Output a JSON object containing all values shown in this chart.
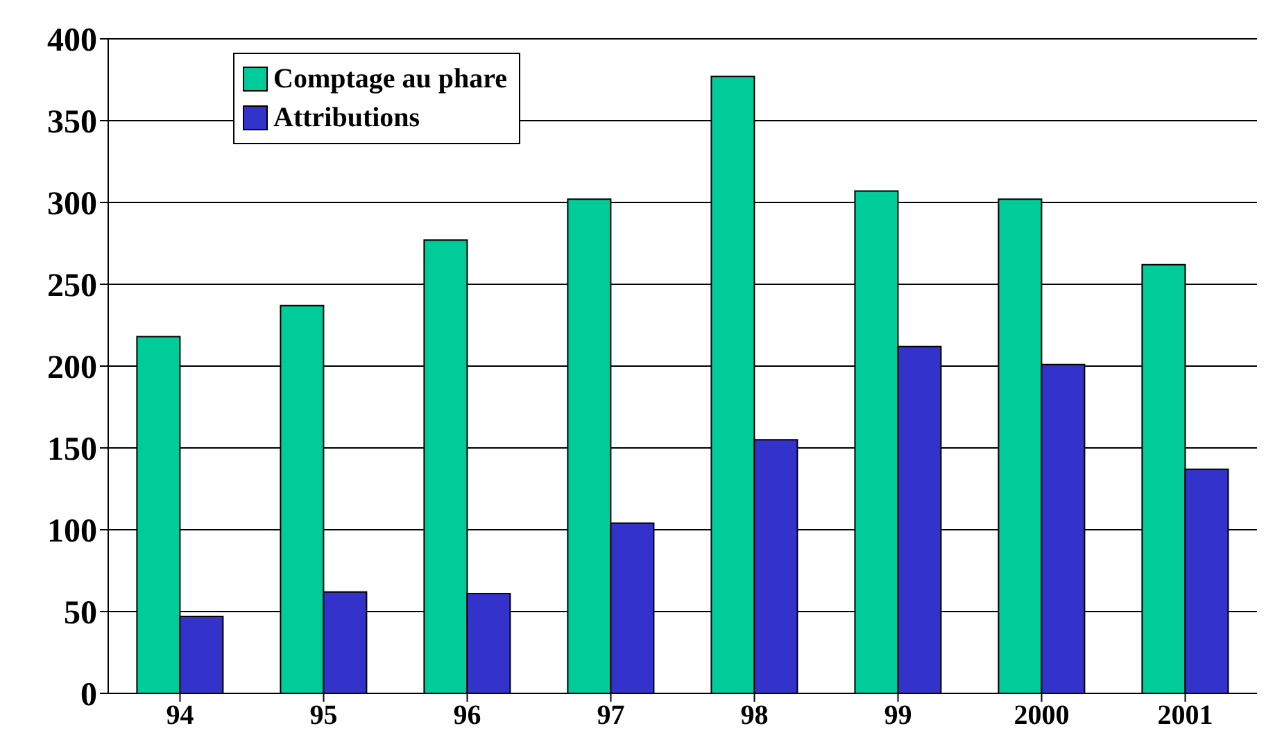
{
  "chart_data": {
    "type": "bar",
    "categories": [
      "94",
      "95",
      "96",
      "97",
      "98",
      "99",
      "2000",
      "2001"
    ],
    "series": [
      {
        "name": "Comptage au phare",
        "color": "#00cc99",
        "values": [
          218,
          237,
          277,
          302,
          377,
          307,
          302,
          262
        ]
      },
      {
        "name": "Attributions",
        "color": "#3333cc",
        "values": [
          47,
          62,
          61,
          104,
          155,
          212,
          201,
          137
        ]
      }
    ],
    "ylim": [
      0,
      400
    ],
    "yticks": [
      0,
      50,
      100,
      150,
      200,
      250,
      300,
      350,
      400
    ],
    "grid": "y",
    "legend": "top left"
  }
}
